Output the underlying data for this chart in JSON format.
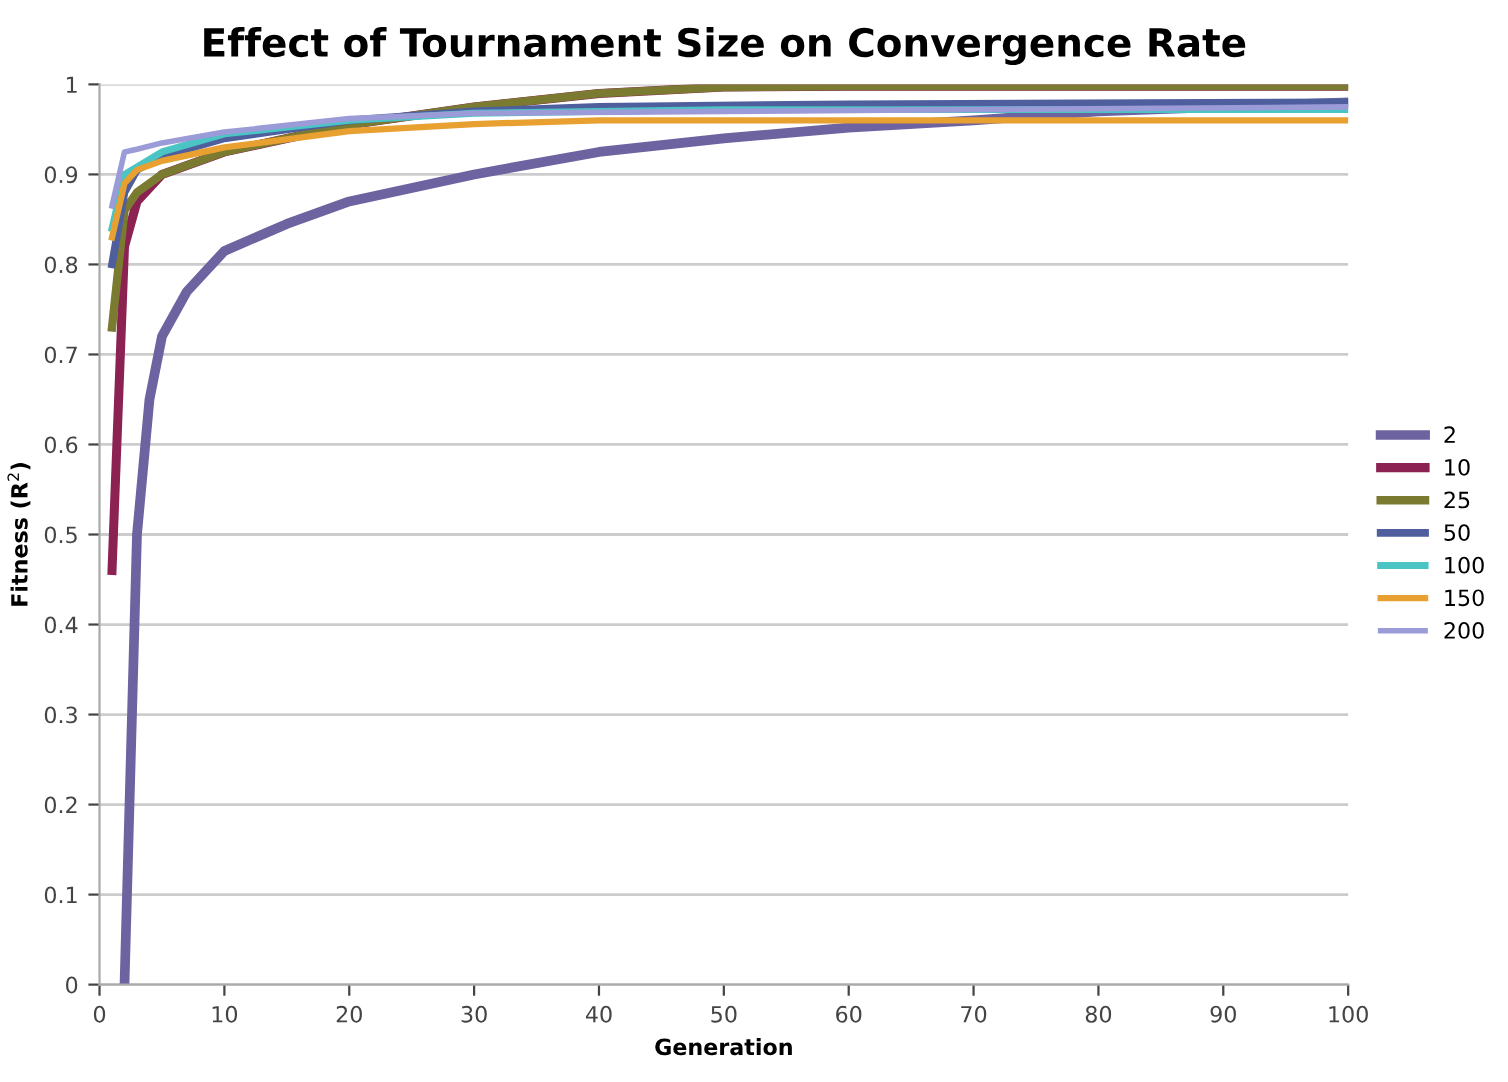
{
  "chart_data": {
    "type": "line",
    "title": "Effect of Tournament Size on Convergence Rate",
    "xlabel": "Generation",
    "ylabel": "Fitness (R$^{2}$)",
    "xlim": [
      0,
      100
    ],
    "xticks": [
      0,
      10,
      20,
      30,
      40,
      50,
      60,
      70,
      80,
      90,
      100
    ],
    "ylim": [
      0,
      1
    ],
    "yticks": [
      0,
      0.1,
      0.2,
      0.3,
      0.4,
      0.5,
      0.6,
      0.7,
      0.8,
      0.9,
      1
    ],
    "grid": "y",
    "legend": "right",
    "marker": "none",
    "line_style": "solid",
    "series": [
      {
        "name": "2",
        "color": "#6c63a0",
        "x": [
          2,
          3,
          4,
          5,
          7,
          10,
          15,
          20,
          30,
          40,
          50,
          60,
          70,
          80,
          90,
          100
        ],
        "values": [
          0,
          0.5,
          0.65,
          0.72,
          0.77,
          0.815,
          0.845,
          0.87,
          0.9,
          0.925,
          0.94,
          0.952,
          0.96,
          0.97,
          0.975,
          0.98
        ]
      },
      {
        "name": "10",
        "color": "#8b2252",
        "x": [
          1,
          2,
          3,
          5,
          10,
          20,
          30,
          40,
          50,
          60,
          100
        ],
        "values": [
          0.46,
          0.82,
          0.87,
          0.9,
          0.925,
          0.955,
          0.975,
          0.99,
          0.997,
          0.998,
          0.998
        ]
      },
      {
        "name": "25",
        "color": "#7a7a30",
        "x": [
          1,
          2,
          3,
          5,
          10,
          20,
          30,
          40,
          50,
          60,
          100
        ],
        "values": [
          0.73,
          0.86,
          0.88,
          0.9,
          0.925,
          0.955,
          0.975,
          0.99,
          0.997,
          0.998,
          0.998
        ]
      },
      {
        "name": "50",
        "color": "#4f5f9e",
        "x": [
          1,
          2,
          3,
          5,
          10,
          20,
          30,
          40,
          60,
          100
        ],
        "values": [
          0.8,
          0.88,
          0.905,
          0.92,
          0.94,
          0.96,
          0.97,
          0.975,
          0.978,
          0.98
        ]
      },
      {
        "name": "100",
        "color": "#4bc4c4",
        "x": [
          1,
          2,
          5,
          10,
          20,
          30,
          50,
          100
        ],
        "values": [
          0.84,
          0.9,
          0.925,
          0.945,
          0.96,
          0.968,
          0.972,
          0.972
        ]
      },
      {
        "name": "150",
        "color": "#e8a030",
        "x": [
          1,
          2,
          3,
          5,
          10,
          20,
          30,
          40,
          100
        ],
        "values": [
          0.83,
          0.89,
          0.905,
          0.915,
          0.93,
          0.948,
          0.956,
          0.96,
          0.96
        ]
      },
      {
        "name": "200",
        "color": "#9b9bd8",
        "x": [
          1,
          2,
          3,
          5,
          10,
          20,
          30,
          100
        ],
        "values": [
          0.865,
          0.925,
          0.928,
          0.935,
          0.947,
          0.962,
          0.968,
          0.975
        ]
      }
    ]
  }
}
